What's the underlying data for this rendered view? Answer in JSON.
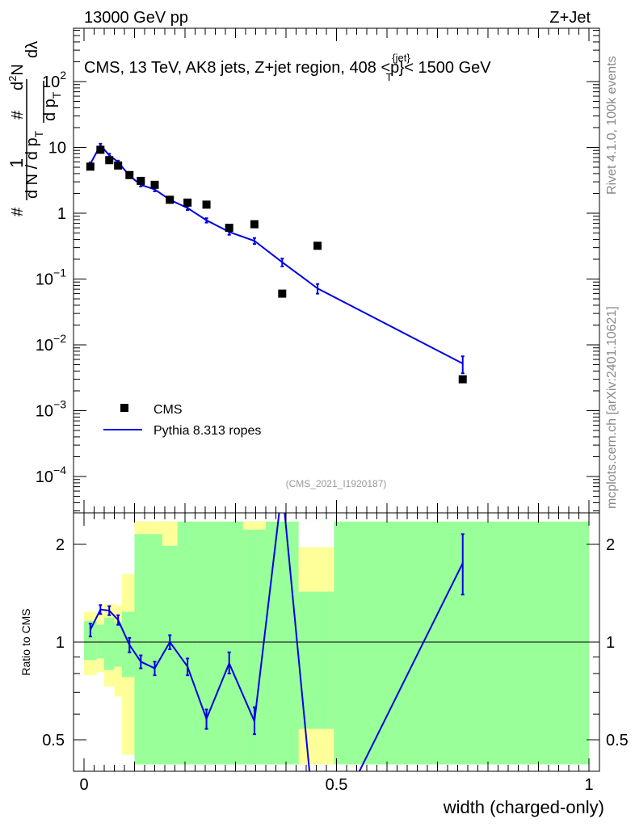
{
  "header": {
    "left": "13000 GeV pp",
    "right": "Z+Jet"
  },
  "side": {
    "rivet": "Rivet 4.1.0,  100k events",
    "mcplots": "mcplots.cern.ch [arXiv:2401.10621]"
  },
  "upper": {
    "title": "CMS, 13 TeV, AK8 jets, Z+jet region, 408 <p",
    "title_sup": "{jet}",
    "title_sub": "T",
    "title_tail": "}< 1500 GeV",
    "ylabel_hash": "#",
    "ylabel_one": "1",
    "ylabel_den": "d N / d p",
    "ylabel_den_sub": "T",
    "ylabel_num_hash": "#",
    "ylabel_num_dp": "d p",
    "ylabel_num_sub": "T",
    "ylabel_d2n": "d",
    "ylabel_d2n_sup": "2",
    "ylabel_n": "N",
    "ylabel_dl": "dλ",
    "watermark": "(CMS_2021_I1920187)",
    "ytick_labels": [
      {
        "base": "10",
        "exp": "2"
      },
      {
        "base": "10",
        "exp": ""
      },
      {
        "base": "1",
        "exp": ""
      },
      {
        "base": "10",
        "exp": "−1"
      },
      {
        "base": "10",
        "exp": "−2"
      },
      {
        "base": "10",
        "exp": "−3"
      },
      {
        "base": "10",
        "exp": "−4"
      }
    ]
  },
  "legend": {
    "cms": "CMS",
    "mc": "Pythia 8.313 ropes"
  },
  "lower": {
    "ylabel": "Ratio to CMS",
    "ytick_labels": [
      "2",
      "1",
      "0.5"
    ],
    "xlabel": "width (charged-only)",
    "xtick_labels": [
      "0",
      "0.5",
      "1"
    ]
  },
  "colors": {
    "mc": "#0000e6",
    "band_inner": "#99ff99",
    "band_outer": "#ffff99",
    "data": "#000000"
  },
  "chart_data": [
    {
      "type": "scatter",
      "title": "CMS, 13 TeV, AK8 jets, Z+jet region, 408 <pT{jet}< 1500 GeV",
      "xlabel": "width (charged-only)",
      "ylabel": "1/dN/dpT * d2N/dpT dlambda",
      "yscale": "log",
      "xlim": [
        0,
        1
      ],
      "ylim": [
        3e-05,
        200
      ],
      "series": [
        {
          "name": "CMS",
          "marker": "square",
          "x": [
            0.0125,
            0.0325,
            0.05,
            0.0675,
            0.09,
            0.1125,
            0.14,
            0.17,
            0.205,
            0.2425,
            0.2875,
            0.3375,
            0.3925,
            0.4625,
            0.75
          ],
          "y": [
            5.1,
            9.2,
            6.4,
            5.3,
            3.8,
            3.1,
            2.7,
            1.6,
            1.45,
            1.35,
            0.6,
            0.68,
            0.06,
            0.32,
            0.003
          ]
        },
        {
          "name": "Pythia 8.313 ropes",
          "marker": "line",
          "x": [
            0.0125,
            0.0325,
            0.05,
            0.0675,
            0.09,
            0.1125,
            0.14,
            0.17,
            0.205,
            0.2425,
            0.2875,
            0.3375,
            0.3925,
            0.4625,
            0.75
          ],
          "y": [
            5.6,
            10.8,
            7.6,
            6.0,
            3.7,
            2.7,
            2.3,
            1.6,
            1.2,
            0.78,
            0.52,
            0.38,
            0.18,
            0.072,
            0.0052
          ],
          "yerr": [
            0.3,
            0.6,
            0.4,
            0.3,
            0.2,
            0.15,
            0.15,
            0.1,
            0.08,
            0.06,
            0.05,
            0.04,
            0.025,
            0.012,
            0.0015
          ]
        }
      ]
    },
    {
      "type": "line",
      "title": "Ratio to CMS",
      "xlabel": "width (charged-only)",
      "ylabel": "Ratio to CMS",
      "yscale": "log",
      "xlim": [
        0,
        1
      ],
      "ylim": [
        0.42,
        2.35
      ],
      "reference_line": 1,
      "series": [
        {
          "name": "Pythia 8.313 ropes / CMS",
          "x": [
            0.0125,
            0.0325,
            0.05,
            0.0675,
            0.09,
            0.1125,
            0.14,
            0.17,
            0.205,
            0.2425,
            0.2875,
            0.3375,
            0.3925,
            0.4625,
            0.75
          ],
          "y": [
            1.09,
            1.26,
            1.25,
            1.17,
            0.98,
            0.87,
            0.83,
            1.0,
            0.84,
            0.58,
            0.86,
            0.57,
            3.0,
            0.22,
            1.75
          ],
          "yerr_low": [
            0.05,
            0.04,
            0.04,
            0.04,
            0.05,
            0.04,
            0.04,
            0.05,
            0.05,
            0.04,
            0.06,
            0.05,
            0.0,
            0.0,
            0.35
          ],
          "yerr_high": [
            0.05,
            0.04,
            0.04,
            0.04,
            0.05,
            0.04,
            0.04,
            0.05,
            0.05,
            0.04,
            0.07,
            0.06,
            0.0,
            0.0,
            0.4
          ]
        }
      ],
      "bands": {
        "edges": [
          0.0,
          0.025,
          0.04,
          0.06,
          0.075,
          0.1,
          0.125,
          0.155,
          0.185,
          0.225,
          0.26,
          0.315,
          0.36,
          0.425,
          0.495,
          1.0
        ],
        "inner_low": [
          0.88,
          0.89,
          0.82,
          0.84,
          0.78,
          0.42,
          0.42,
          0.42,
          0.42,
          0.42,
          0.42,
          0.42,
          0.42,
          0.42,
          0.42
        ],
        "inner_high": [
          1.16,
          1.13,
          1.19,
          1.15,
          1.24,
          2.35,
          2.35,
          2.35,
          2.35,
          2.35,
          2.35,
          2.35,
          2.35,
          2.35,
          2.35
        ],
        "outer_low": [
          0.79,
          0.81,
          0.73,
          0.68,
          0.45,
          0.42,
          0.42,
          0.42,
          0.42,
          0.42,
          0.42,
          0.42,
          0.42,
          0.54,
          0.42
        ],
        "outer_high": [
          1.24,
          1.22,
          1.31,
          1.3,
          1.62,
          2.35,
          2.35,
          2.35,
          2.35,
          2.35,
          2.35,
          2.35,
          2.35,
          1.96,
          2.35
        ],
        "inner_gaps": [
          {
            "x0": 0.1,
            "x1": 0.155,
            "top": 2.15
          },
          {
            "x0": 0.155,
            "x1": 0.185,
            "top": 1.98
          },
          {
            "x0": 0.315,
            "x1": 0.36,
            "top": 2.22
          },
          {
            "x0": 0.425,
            "x1": 0.495,
            "top": 1.43,
            "bottom": 0.54
          }
        ]
      }
    }
  ]
}
